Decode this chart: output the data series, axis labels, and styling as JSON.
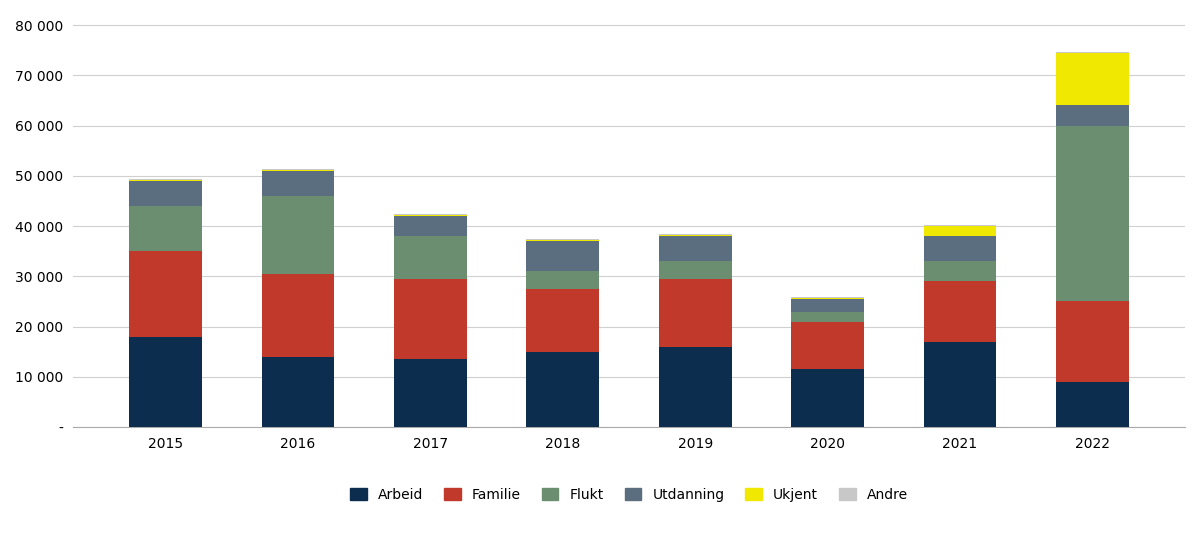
{
  "years": [
    "2015",
    "2016",
    "2017",
    "2018",
    "2019",
    "2020",
    "2021",
    "2022"
  ],
  "categories": [
    "Arbeid",
    "Familie",
    "Flukt",
    "Utdanning",
    "Ukjent",
    "Andre"
  ],
  "colors": [
    "#0d2d4e",
    "#c0392b",
    "#6b8e71",
    "#5a6e7f",
    "#f0e800",
    "#c8c8c8"
  ],
  "data": {
    "Arbeid": [
      18000,
      14000,
      13500,
      15000,
      16000,
      11500,
      17000,
      9000
    ],
    "Familie": [
      17000,
      16500,
      16000,
      12500,
      13500,
      9500,
      12000,
      16000
    ],
    "Flukt": [
      9000,
      15500,
      8500,
      3500,
      3500,
      2000,
      4000,
      35000
    ],
    "Utdanning": [
      5000,
      5000,
      4000,
      6000,
      5000,
      2500,
      5000,
      4000
    ],
    "Ukjent": [
      200,
      200,
      200,
      200,
      200,
      200,
      2000,
      10500
    ],
    "Andre": [
      200,
      200,
      200,
      200,
      200,
      200,
      200,
      200
    ]
  },
  "ylim": [
    0,
    82000
  ],
  "yticks": [
    0,
    10000,
    20000,
    30000,
    40000,
    50000,
    60000,
    70000,
    80000
  ],
  "ytick_labels": [
    "-",
    "10 000",
    "20 000",
    "30 000",
    "40 000",
    "50 000",
    "60 000",
    "70 000",
    "80 000"
  ],
  "background_color": "#ffffff",
  "grid_color": "#d0d0d0",
  "bar_width": 0.55,
  "figsize": [
    12.0,
    5.58
  ]
}
